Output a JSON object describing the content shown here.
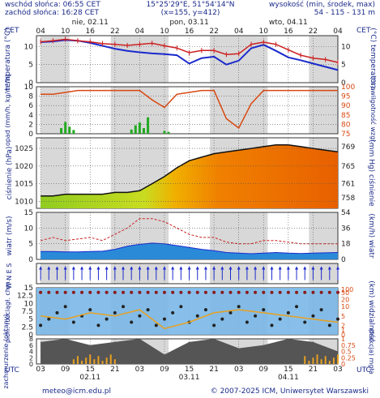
{
  "header": {
    "sunrise": "wschód słońca: 06:55 CET",
    "sunset": "zachód słońca: 16:28 CET",
    "coords": "15°25'29\"E, 51°54'14\"N",
    "grid": "(x=155, y=412)",
    "elev_label": "wysokość (min, środek, max)",
    "elev_values": "54 - 115 - 131 m"
  },
  "axis_top": {
    "tz": "CET",
    "hours": [
      "04",
      "10",
      "16",
      "22",
      "04",
      "10",
      "16",
      "22",
      "04",
      "10",
      "16",
      "22",
      "04"
    ],
    "days": [
      "nie, 02.11",
      "pon, 03.11",
      "wto, 04.11"
    ]
  },
  "axis_bottom": {
    "tz": "UTC",
    "hours": [
      "03",
      "09",
      "15",
      "21",
      "03",
      "09",
      "15",
      "21",
      "03",
      "09",
      "15",
      "21",
      "03"
    ],
    "days": [
      "02.11",
      "03.11",
      "04.11"
    ]
  },
  "footer": {
    "email": "meteo@icm.edu.pl",
    "copyright": "© 2007-2025 ICM, Uniwersytet Warszawski"
  },
  "colors": {
    "line_blue": "#1a2acc",
    "line_red": "#cc2020",
    "grid_day": "#d8d8d8",
    "bar_green": "#22aa22",
    "humidity": "#d84810"
  },
  "chart_data": [
    {
      "type": "line",
      "name": "temperature",
      "ylabel_left": "temperatura (°C)",
      "ylabel_right": "(°C) temperatura",
      "ylim": [
        0,
        13
      ],
      "yticks": [
        0,
        5,
        10
      ],
      "x_hours": [
        0,
        3,
        6,
        9,
        12,
        15,
        18,
        21,
        24,
        27,
        30,
        33,
        36,
        39,
        42,
        45,
        48,
        51,
        54,
        57,
        60,
        63,
        66,
        69,
        72
      ],
      "series": [
        {
          "values": [
            11.2,
            11.4,
            11.8,
            11.6,
            11.0,
            10.2,
            9.4,
            8.8,
            8.4,
            8.1,
            7.9,
            7.6,
            5.3,
            6.8,
            7.2,
            5.0,
            6.1,
            9.5,
            10.5,
            8.8,
            7.0,
            6.2,
            5.3,
            4.4,
            3.5
          ]
        },
        {
          "values": [
            11.3,
            11.6,
            12.0,
            11.6,
            11.3,
            10.8,
            10.6,
            10.3,
            10.6,
            10.9,
            10.2,
            9.6,
            8.3,
            8.9,
            8.9,
            7.8,
            8.0,
            10.6,
            11.2,
            10.6,
            9.1,
            7.6,
            6.8,
            6.4,
            5.6
          ]
        }
      ]
    },
    {
      "type": "bar",
      "name": "precipitation",
      "ylabel_left": "opad (mm/h, kg/m²/h)",
      "ylabel_right": "(%) wilgotność wzgl.",
      "ylim": [
        0,
        10
      ],
      "yticks": [
        0,
        2,
        4,
        6,
        8,
        10
      ],
      "y2lim": [
        75,
        100
      ],
      "y2ticks": [
        75,
        80,
        85,
        90,
        95,
        100
      ],
      "bars_x_hours": [
        5,
        6,
        7,
        8,
        22,
        23,
        24,
        25,
        26,
        30,
        31
      ],
      "bars_values": [
        1.2,
        2.5,
        1.5,
        0.8,
        0.9,
        1.8,
        2.4,
        1.2,
        3.5,
        0.6,
        0.4
      ],
      "humidity_x_hours": [
        0,
        3,
        6,
        9,
        12,
        15,
        18,
        21,
        24,
        27,
        30,
        33,
        36,
        39,
        42,
        45,
        48,
        51,
        54,
        57,
        60,
        63,
        66,
        69,
        72
      ],
      "humidity_values": [
        96,
        96,
        97,
        98,
        98,
        98,
        98,
        98,
        98,
        93,
        89,
        96,
        97,
        98,
        98,
        83,
        78,
        91,
        98,
        98,
        98,
        98,
        98,
        98,
        98
      ]
    },
    {
      "type": "area",
      "name": "pressure",
      "ylabel_left": "ciśnienie (hPa)",
      "ylabel_right": "(mm Hg) ciśnienie",
      "ylim": [
        1008,
        1028
      ],
      "yticks": [
        1010,
        1015,
        1020,
        1025
      ],
      "y2ticks": [
        758,
        761,
        765,
        769
      ],
      "x_hours": [
        0,
        3,
        6,
        9,
        12,
        15,
        18,
        21,
        24,
        27,
        30,
        33,
        36,
        39,
        42,
        45,
        48,
        51,
        54,
        57,
        60,
        63,
        66,
        69,
        72
      ],
      "values": [
        1011.5,
        1011.5,
        1012,
        1012,
        1012,
        1012,
        1012.5,
        1012.5,
        1013,
        1015,
        1017,
        1019.5,
        1021.5,
        1022.5,
        1023.5,
        1024,
        1024.5,
        1025,
        1025.5,
        1026,
        1026,
        1025.5,
        1025,
        1024.5,
        1024
      ]
    },
    {
      "type": "area",
      "name": "wind",
      "ylabel_left": "wiatr (m/s)",
      "ylabel_right": "(km/h) wiatr",
      "ylim": [
        0,
        15
      ],
      "yticks": [
        0,
        5,
        10,
        15
      ],
      "y2ticks": [
        0,
        18,
        36,
        54
      ],
      "x_hours": [
        0,
        3,
        6,
        9,
        12,
        15,
        18,
        21,
        24,
        27,
        30,
        33,
        36,
        39,
        42,
        45,
        48,
        51,
        54,
        57,
        60,
        63,
        66,
        69,
        72
      ],
      "speed": [
        2.5,
        2.5,
        2.4,
        2.4,
        2.5,
        2.6,
        3.2,
        4.2,
        4.8,
        5.2,
        5.0,
        4.4,
        3.8,
        3.2,
        2.8,
        2.2,
        2.0,
        1.8,
        2.0,
        2.2,
        2.0,
        1.9,
        2.0,
        2.1,
        2.2
      ],
      "gusts": [
        6,
        7,
        6,
        6.5,
        7,
        6,
        8,
        10,
        13,
        13,
        12,
        10,
        8,
        7,
        7,
        5.5,
        5,
        5,
        6,
        6,
        5.5,
        5,
        5,
        5,
        5
      ]
    },
    {
      "type": "scatter",
      "name": "wind_direction",
      "ylabel_left": "W N E S"
    },
    {
      "type": "scatter",
      "name": "cloud_base_visibility",
      "ylabel_left": "pion. rozciągł. chm.",
      "ylabel_right": "(km) widzialność",
      "ylim": [
        0,
        15
      ],
      "yticks": [
        0,
        2.5,
        5,
        7.5,
        10,
        12.5,
        15
      ],
      "y2ticks": [
        0,
        1,
        2,
        5,
        10,
        20,
        50,
        100
      ]
    },
    {
      "type": "area",
      "name": "cloud_cover",
      "ylabel_left": "zachmurzenie (oktany)",
      "ylabel_right": "(frakcja) mgła",
      "ylim": [
        0,
        8
      ],
      "yticks": [
        0,
        2,
        4,
        6,
        8
      ],
      "y2ticks": [
        0,
        0.25,
        0.5,
        0.75,
        1
      ]
    }
  ]
}
